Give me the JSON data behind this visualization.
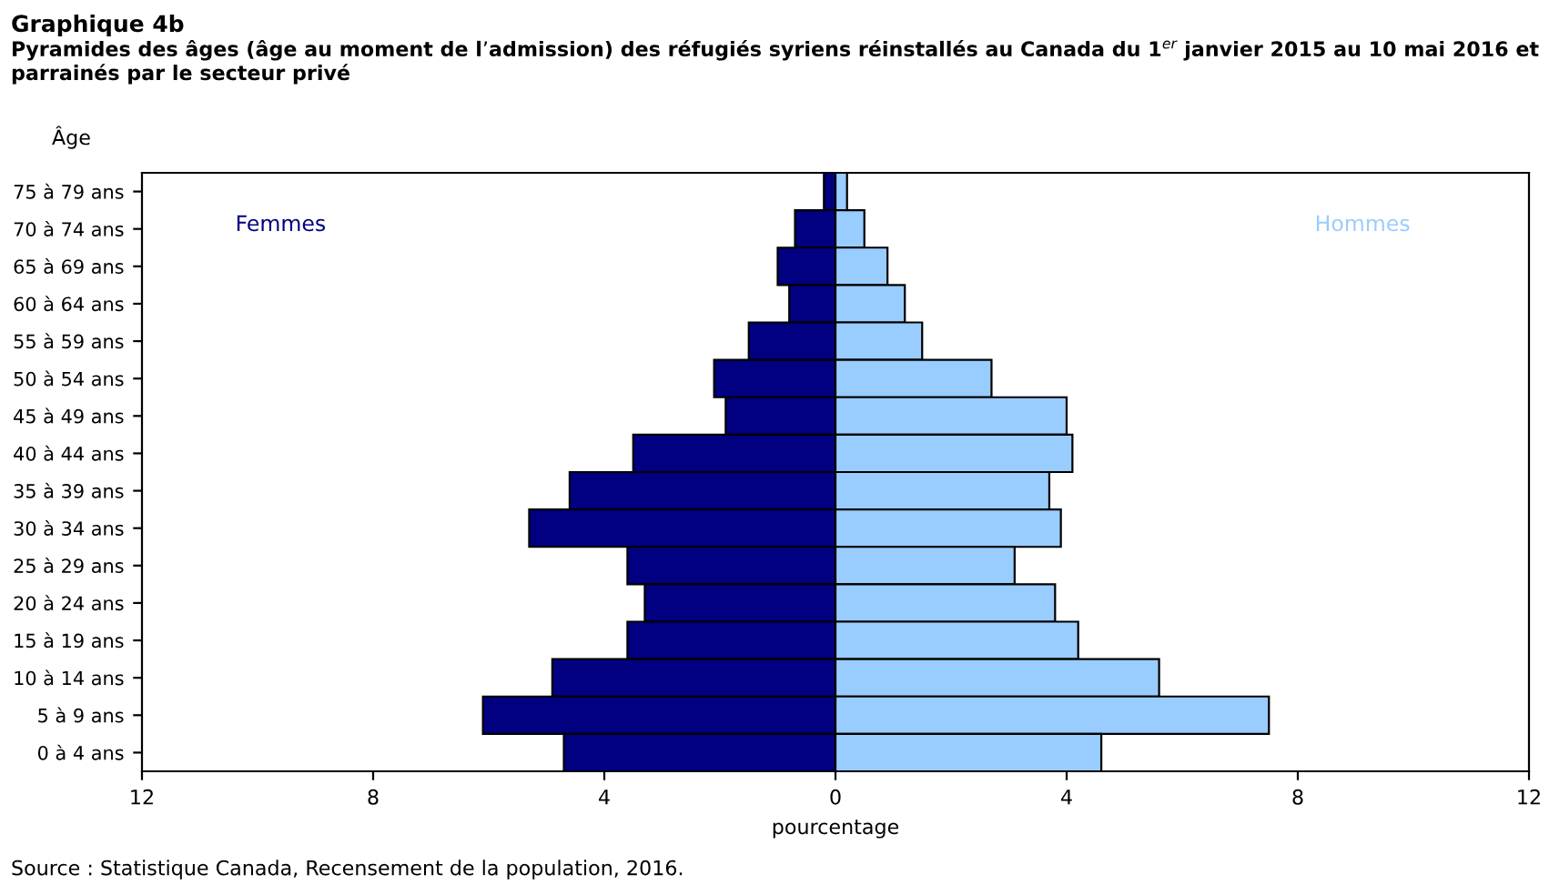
{
  "chart_data": {
    "type": "bar",
    "orientation": "horizontal",
    "title": "Graphique 4b",
    "subtitle": "Pyramides des âges (âge au moment de l’admission) des réfugiés syriens réinstallés au Canada du 1$^{er}$ janvier 2015 au 10 mai 2016 et parrainés par le secteur privé",
    "ylabel": "Âge",
    "xlabel": "pourcentage",
    "categories": [
      "75 à 79 ans",
      "70 à 74 ans",
      "65 à 69 ans",
      "60 à 64 ans",
      "55 à 59 ans",
      "50 à 54 ans",
      "45 à 49 ans",
      "40 à 44 ans",
      "35 à 39 ans",
      "30 à 34 ans",
      "25 à 29 ans",
      "20 à 24 ans",
      "15 à 19 ans",
      "10 à 14 ans",
      "5 à 9 ans",
      "0 à 4 ans"
    ],
    "series": [
      {
        "name": "Femmes",
        "color": "#000080",
        "values": [
          -0.2,
          -0.7,
          -1.0,
          -0.8,
          -1.5,
          -2.1,
          -1.9,
          -3.5,
          -4.6,
          -5.3,
          -3.6,
          -3.3,
          -3.6,
          -4.9,
          -6.1,
          -4.7
        ]
      },
      {
        "name": "Hommes",
        "color": "#99ccff",
        "values": [
          0.2,
          0.5,
          0.9,
          1.2,
          1.5,
          2.7,
          4.0,
          4.1,
          3.7,
          3.9,
          3.1,
          3.8,
          4.2,
          5.6,
          7.5,
          4.6
        ]
      }
    ],
    "xlim": [
      -12,
      12
    ],
    "xticks": [
      {
        "value": -12,
        "label": "12"
      },
      {
        "value": -8,
        "label": "8"
      },
      {
        "value": -4,
        "label": "4"
      },
      0,
      4,
      8,
      12
    ],
    "stacked": true,
    "grid": false,
    "legend": false,
    "annotations": [
      "Source : Statistique Canada, Recensement de la population, 2016."
    ]
  }
}
